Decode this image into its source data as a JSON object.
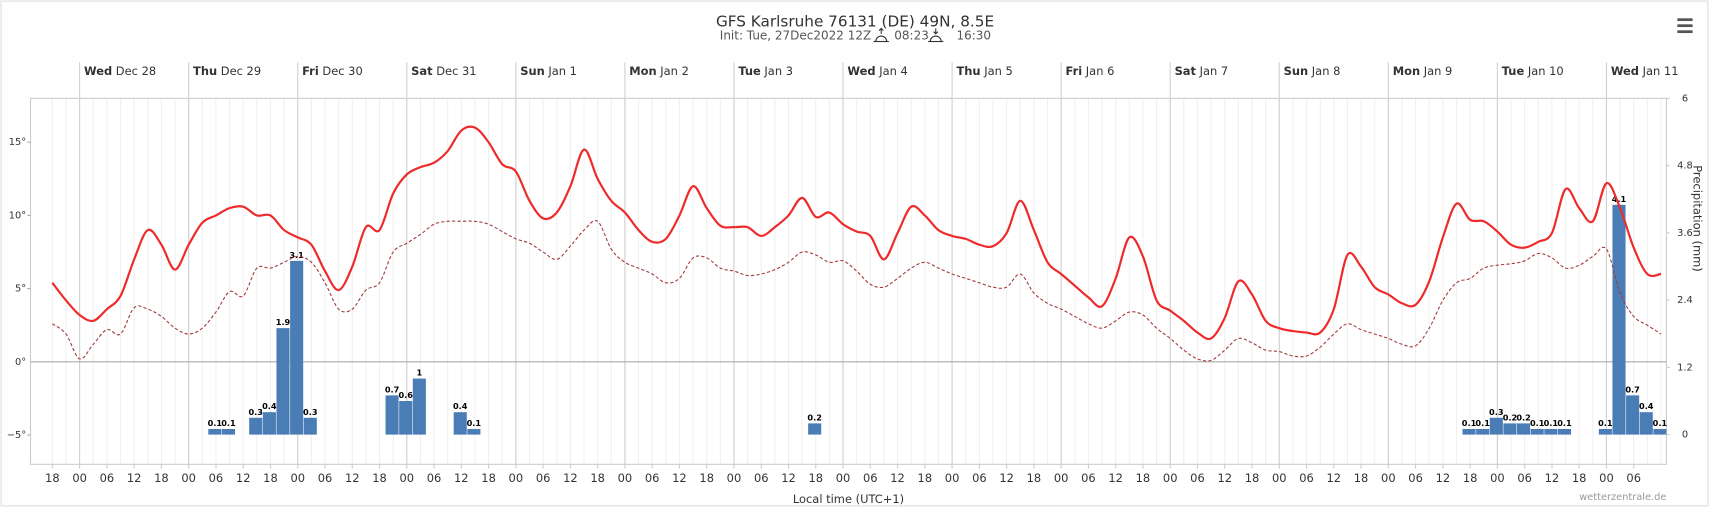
{
  "chart_data": {
    "type": "line",
    "title": "GFS Karlsruhe 76131 (DE) 49N, 8.5E",
    "subtitle": "Init: Tue, 27Dec2022 12Z",
    "sunrise": "08:23",
    "sunset": "16:30",
    "x_label": "Local time (UTC+1)",
    "y2_label": "Precipitation (mm)",
    "credit": "wetterzentrale.de",
    "days": [
      {
        "weekday": "Wed",
        "date": "Dec 28"
      },
      {
        "weekday": "Thu",
        "date": "Dec 29"
      },
      {
        "weekday": "Fri",
        "date": "Dec 30"
      },
      {
        "weekday": "Sat",
        "date": "Dec 31"
      },
      {
        "weekday": "Sun",
        "date": "Jan 1"
      },
      {
        "weekday": "Mon",
        "date": "Jan 2"
      },
      {
        "weekday": "Tue",
        "date": "Jan 3"
      },
      {
        "weekday": "Wed",
        "date": "Jan 4"
      },
      {
        "weekday": "Thu",
        "date": "Jan 5"
      },
      {
        "weekday": "Fri",
        "date": "Jan 6"
      },
      {
        "weekday": "Sat",
        "date": "Jan 7"
      },
      {
        "weekday": "Sun",
        "date": "Jan 8"
      },
      {
        "weekday": "Mon",
        "date": "Jan 9"
      },
      {
        "weekday": "Tue",
        "date": "Jan 10"
      },
      {
        "weekday": "Wed",
        "date": "Jan 11"
      }
    ],
    "categories": [
      "18",
      null,
      "00",
      null,
      "06",
      null,
      "12",
      null,
      "18",
      null,
      "00",
      null,
      "06",
      null,
      "12",
      null,
      "18",
      null,
      "00",
      null,
      "06",
      null,
      "12",
      null,
      "18",
      null,
      "00",
      null,
      "06",
      null,
      "12",
      null,
      "18",
      null,
      "00",
      null,
      "06",
      null,
      "12",
      null,
      "18",
      null,
      "00",
      null,
      "06",
      null,
      "12",
      null,
      "18",
      null,
      "00",
      null,
      "06",
      null,
      "12",
      null,
      "18",
      null,
      "00",
      null,
      "06",
      null,
      "12",
      null,
      "18",
      null,
      "00",
      null,
      "06",
      null,
      "12",
      null,
      "18",
      null,
      "00",
      null,
      "06",
      null,
      "12",
      null,
      "18",
      null,
      "00",
      null,
      "06",
      null,
      "12",
      null,
      "18",
      null,
      "00",
      null,
      "06",
      null,
      "12",
      null,
      "18",
      null,
      "00",
      null,
      "06",
      null,
      "12",
      null,
      "18",
      null,
      "00",
      null,
      "06",
      null,
      "12",
      null,
      "18",
      null,
      "00",
      null,
      "06",
      null,
      null
    ],
    "ylim": [
      -7,
      18
    ],
    "yticks": [
      {
        "value": 15,
        "label": "15°"
      },
      {
        "value": 10,
        "label": "10°"
      },
      {
        "value": 5,
        "label": "5°"
      },
      {
        "value": 0,
        "label": "0°"
      },
      {
        "value": -5,
        "label": "−5°"
      }
    ],
    "y2lim": [
      -0.53,
      6
    ],
    "y2ticks": [
      0,
      1.2,
      2.4,
      3.6,
      4.8,
      6
    ],
    "grid": false,
    "series": [
      {
        "type": "line",
        "color": "#ee2a2a",
        "width": 2,
        "values": [
          5.4,
          4.2,
          3.2,
          2.8,
          3.6,
          4.5,
          7.0,
          9.0,
          8.0,
          6.3,
          8.0,
          9.5,
          10.0,
          10.5,
          10.6,
          10.0,
          10.0,
          9.0,
          8.5,
          8.0,
          6.2,
          4.9,
          6.5,
          9.2,
          9.0,
          11.5,
          12.8,
          13.3,
          13.6,
          14.4,
          15.8,
          16.0,
          15.0,
          13.5,
          13.0,
          11.0,
          9.8,
          10.2,
          12.0,
          14.5,
          12.5,
          11.0,
          10.2,
          9.0,
          8.2,
          8.4,
          10.0,
          12.0,
          10.5,
          9.3,
          9.2,
          9.2,
          8.6,
          9.2,
          10.0,
          11.2,
          9.9,
          10.2,
          9.4,
          8.9,
          8.6,
          7.0,
          8.8,
          10.6,
          10.0,
          9.0,
          8.6,
          8.4,
          8.0,
          7.9,
          8.8,
          11.0,
          9.0,
          6.8,
          6.0,
          5.2,
          4.4,
          3.8,
          5.7,
          8.5,
          7.2,
          4.2,
          3.5,
          2.8,
          2.0,
          1.6,
          3.0,
          5.5,
          4.6,
          2.8,
          2.3,
          2.1,
          2.0,
          2.0,
          3.6,
          7.3,
          6.5,
          5.1,
          4.6,
          4.0,
          3.9,
          5.5,
          8.5,
          10.8,
          9.7,
          9.6,
          8.9,
          8.0,
          7.8,
          8.2,
          8.8,
          11.8,
          10.5,
          9.6,
          12.2,
          10.5,
          7.8,
          6.0,
          6.0
        ]
      },
      {
        "type": "line",
        "color": "#a33a3a",
        "width": 1,
        "dashed": true,
        "values": [
          2.6,
          1.9,
          0.2,
          1.2,
          2.2,
          1.9,
          3.7,
          3.6,
          3.1,
          2.3,
          1.9,
          2.3,
          3.4,
          4.8,
          4.5,
          6.4,
          6.4,
          6.8,
          7.2,
          6.8,
          5.4,
          3.6,
          3.6,
          4.9,
          5.4,
          7.5,
          8.1,
          8.7,
          9.4,
          9.6,
          9.6,
          9.6,
          9.4,
          8.9,
          8.4,
          8.1,
          7.5,
          7.0,
          7.9,
          9.0,
          9.6,
          7.7,
          6.8,
          6.4,
          6.0,
          5.4,
          5.7,
          7.1,
          7.1,
          6.4,
          6.2,
          5.9,
          6.0,
          6.3,
          6.8,
          7.5,
          7.3,
          6.8,
          6.9,
          6.2,
          5.3,
          5.1,
          5.7,
          6.4,
          6.8,
          6.4,
          6.0,
          5.7,
          5.4,
          5.1,
          5.1,
          6.0,
          4.7,
          4.0,
          3.6,
          3.1,
          2.6,
          2.3,
          2.8,
          3.4,
          3.2,
          2.3,
          1.6,
          0.8,
          0.2,
          0.1,
          0.8,
          1.6,
          1.3,
          0.8,
          0.7,
          0.4,
          0.4,
          1.0,
          1.9,
          2.6,
          2.2,
          1.9,
          1.6,
          1.2,
          1.1,
          2.3,
          4.2,
          5.4,
          5.7,
          6.4,
          6.6,
          6.7,
          6.9,
          7.4,
          7.1,
          6.4,
          6.6,
          7.2,
          7.7,
          4.7,
          3.1,
          2.5,
          1.9
        ]
      },
      {
        "type": "bar",
        "axis": "y2",
        "color": "#4a7db5",
        "values": [
          0,
          0,
          0,
          0,
          0,
          0,
          0,
          0,
          0,
          0,
          0,
          0,
          0.1,
          0.1,
          0,
          0.3,
          0.4,
          1.9,
          3.1,
          0.3,
          0,
          0,
          0,
          0,
          0,
          0.7,
          0.6,
          1.0,
          0,
          0,
          0.4,
          0.1,
          0,
          0,
          0,
          0,
          0,
          0,
          0,
          0,
          0,
          0,
          0,
          0,
          0,
          0,
          0,
          0,
          0,
          0,
          0,
          0,
          0,
          0,
          0,
          0,
          0.2,
          0,
          0,
          0,
          0,
          0,
          0,
          0,
          0,
          0,
          0,
          0,
          0,
          0,
          0,
          0,
          0,
          0,
          0,
          0,
          0,
          0,
          0,
          0,
          0,
          0,
          0,
          0,
          0,
          0,
          0,
          0,
          0,
          0,
          0,
          0,
          0,
          0,
          0,
          0,
          0,
          0,
          0,
          0,
          0,
          0,
          0,
          0,
          0.1,
          0.1,
          0.3,
          0.2,
          0.2,
          0.1,
          0.1,
          0.1,
          0,
          0,
          0.1,
          4.1,
          0.7,
          0.4,
          0.1
        ]
      }
    ]
  }
}
